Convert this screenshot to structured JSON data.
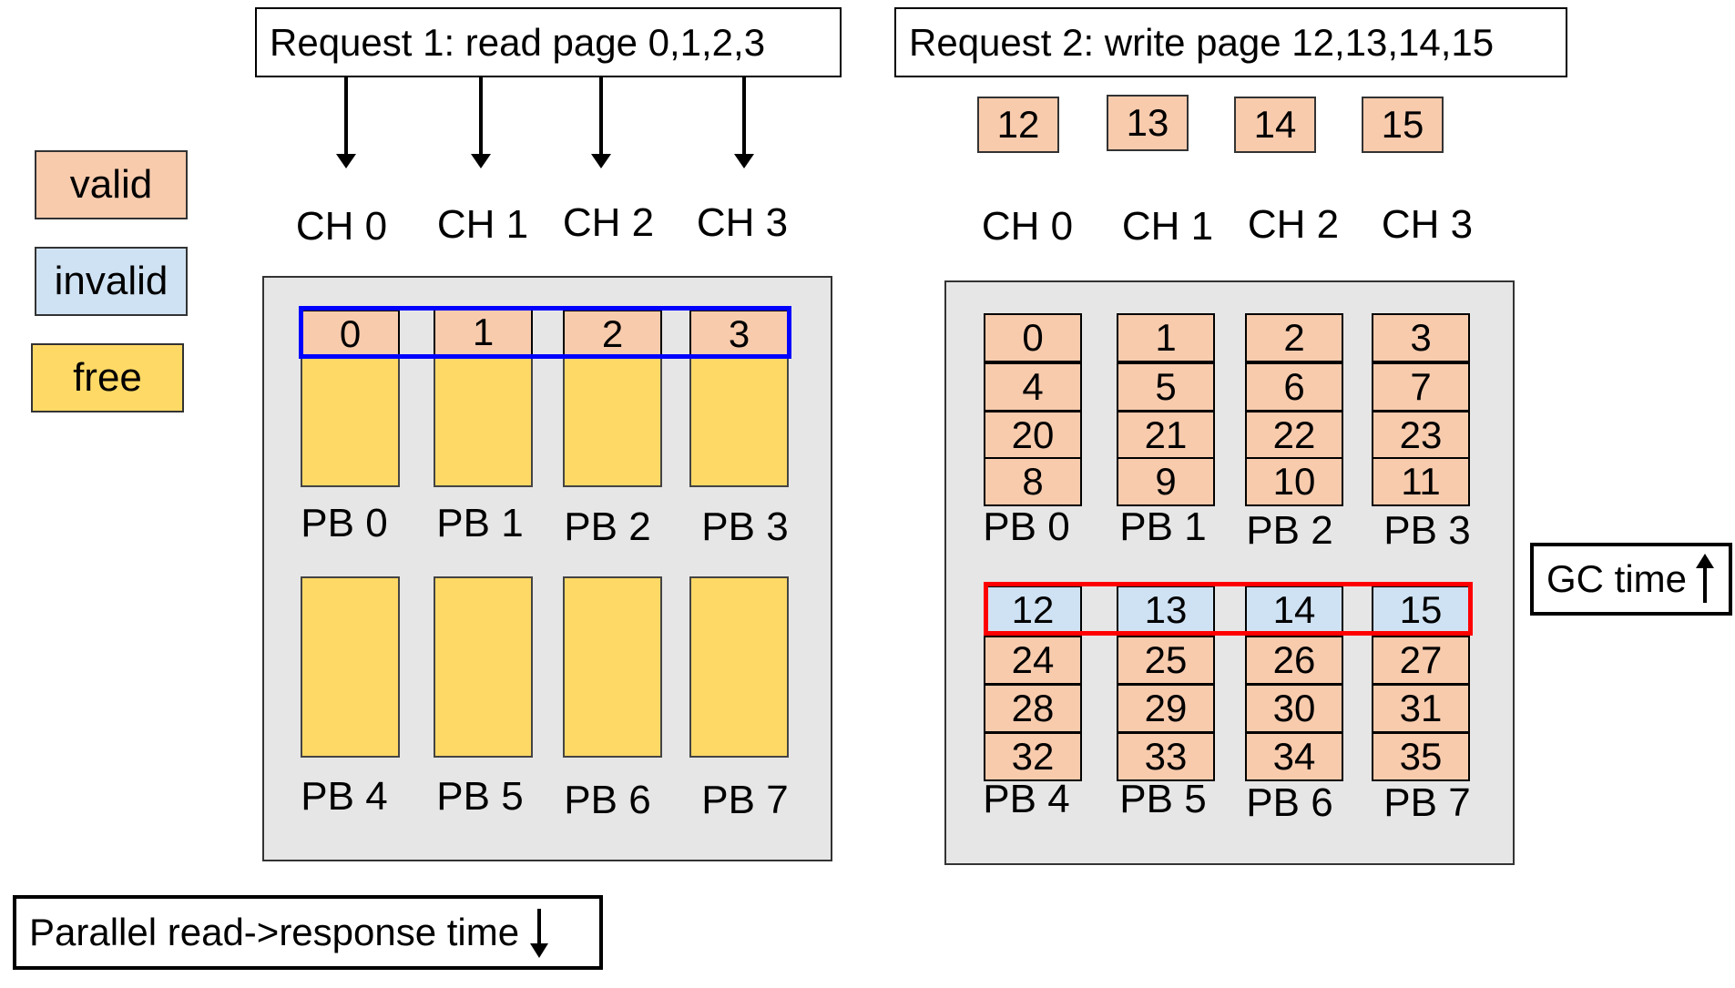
{
  "request1": {
    "label": "Request 1: read page 0,1,2,3"
  },
  "request2": {
    "label": "Request 2: write page 12,13,14,15"
  },
  "legend": {
    "valid": "valid",
    "invalid": "invalid",
    "free": "free"
  },
  "colors": {
    "valid": "#f8cbad",
    "invalid": "#cfe2f3",
    "free": "#ffd966",
    "read_highlight": "#0000ff",
    "write_highlight": "#ff0000",
    "panel": "#e6e6e6"
  },
  "channels": [
    "CH 0",
    "CH 1",
    "CH 2",
    "CH 3"
  ],
  "write_pages": [
    "12",
    "13",
    "14",
    "15"
  ],
  "left_blocks": {
    "top_labels": [
      "PB 0",
      "PB 1",
      "PB 2",
      "PB 3"
    ],
    "bottom_labels": [
      "PB 4",
      "PB 5",
      "PB 6",
      "PB 7"
    ],
    "top_row_pages": [
      "0",
      "1",
      "2",
      "3"
    ]
  },
  "right_blocks": {
    "top_labels": [
      "PB 0",
      "PB 1",
      "PB 2",
      "PB 3"
    ],
    "bottom_labels": [
      "PB 4",
      "PB 5",
      "PB 6",
      "PB 7"
    ],
    "top_pages": [
      [
        "0",
        "4",
        "20",
        "8"
      ],
      [
        "1",
        "5",
        "21",
        "9"
      ],
      [
        "2",
        "6",
        "22",
        "10"
      ],
      [
        "3",
        "7",
        "23",
        "11"
      ]
    ],
    "bottom_pages": [
      [
        "12",
        "24",
        "28",
        "32"
      ],
      [
        "13",
        "25",
        "29",
        "33"
      ],
      [
        "14",
        "26",
        "30",
        "34"
      ],
      [
        "15",
        "27",
        "31",
        "35"
      ]
    ],
    "invalid_row": 0
  },
  "gc_time": {
    "label": "GC time",
    "arrow": "up-arrow"
  },
  "parallel_read": {
    "label": "Parallel read->response time",
    "arrow": "down-arrow"
  }
}
